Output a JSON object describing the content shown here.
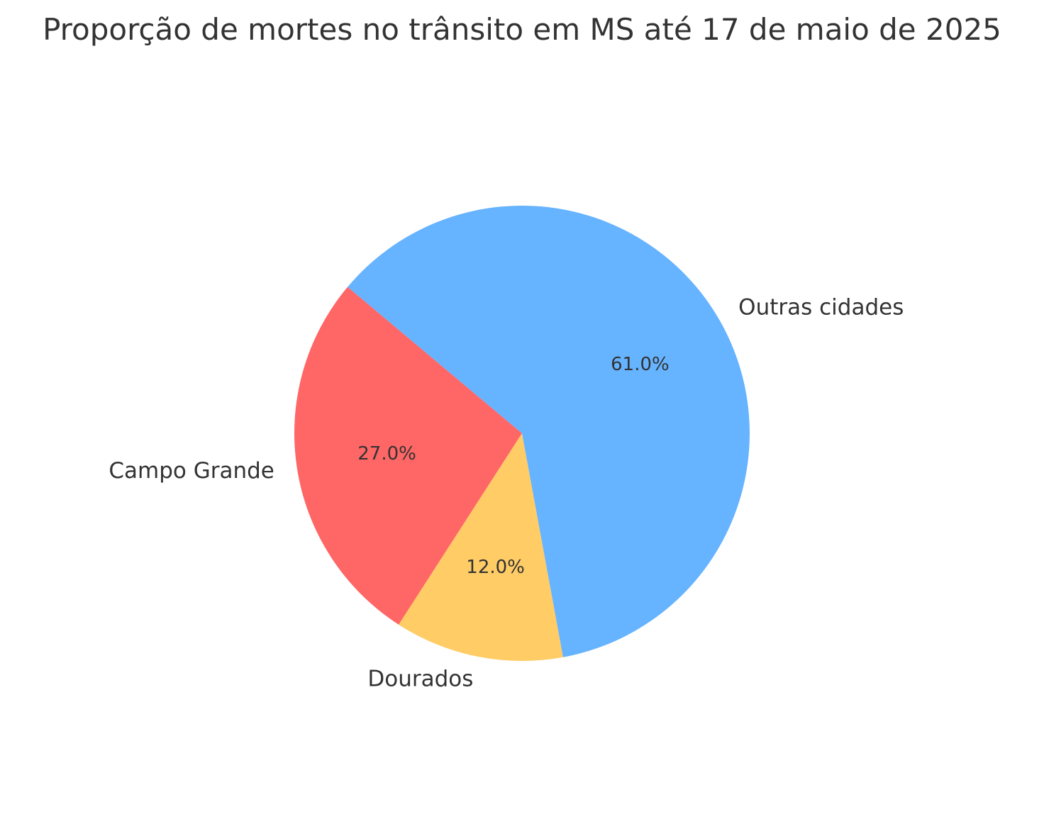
{
  "chart_data": {
    "type": "pie",
    "title": "Proporção de mortes no trânsito em MS até 17 de maio de 2025",
    "categories": [
      "Campo Grande",
      "Dourados",
      "Outras cidades"
    ],
    "values": [
      27.0,
      12.0,
      61.0
    ],
    "percent_labels": [
      "27.0%",
      "12.0%",
      "61.0%"
    ],
    "colors": [
      "#ff6666",
      "#ffcc66",
      "#66b3ff"
    ],
    "start_angle_deg": 140,
    "direction": "counterclockwise",
    "legend": "none"
  }
}
